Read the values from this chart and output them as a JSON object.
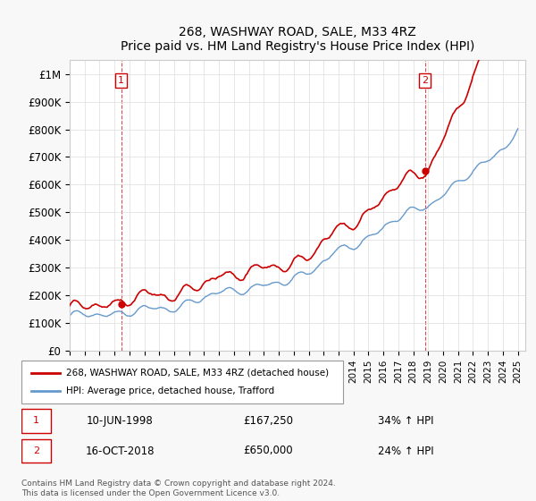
{
  "title": "268, WASHWAY ROAD, SALE, M33 4RZ",
  "subtitle": "Price paid vs. HM Land Registry's House Price Index (HPI)",
  "ylabel": "",
  "xlim_start": 1995.0,
  "xlim_end": 2025.5,
  "ylim": [
    0,
    1050000
  ],
  "yticks": [
    0,
    100000,
    200000,
    300000,
    400000,
    500000,
    600000,
    700000,
    800000,
    900000,
    1000000
  ],
  "ytick_labels": [
    "£0",
    "£100K",
    "£200K",
    "£300K",
    "£400K",
    "£500K",
    "£600K",
    "£700K",
    "£800K",
    "£900K",
    "£1M"
  ],
  "transaction1_x": 1998.44,
  "transaction1_y": 167250,
  "transaction1_label": "1",
  "transaction2_x": 2018.79,
  "transaction2_y": 650000,
  "transaction2_label": "2",
  "sale_color": "#cc0000",
  "hpi_color": "#6699cc",
  "vline_color": "#cc0000",
  "legend_sale": "268, WASHWAY ROAD, SALE, M33 4RZ (detached house)",
  "legend_hpi": "HPI: Average price, detached house, Trafford",
  "annotation1_date": "10-JUN-1998",
  "annotation1_price": "£167,250",
  "annotation1_hpi": "34% ↑ HPI",
  "annotation2_date": "16-OCT-2018",
  "annotation2_price": "£650,000",
  "annotation2_hpi": "24% ↑ HPI",
  "footer": "Contains HM Land Registry data © Crown copyright and database right 2024.\nThis data is licensed under the Open Government Licence v3.0.",
  "background_color": "#f8f8f8",
  "plot_bg_color": "#ffffff"
}
